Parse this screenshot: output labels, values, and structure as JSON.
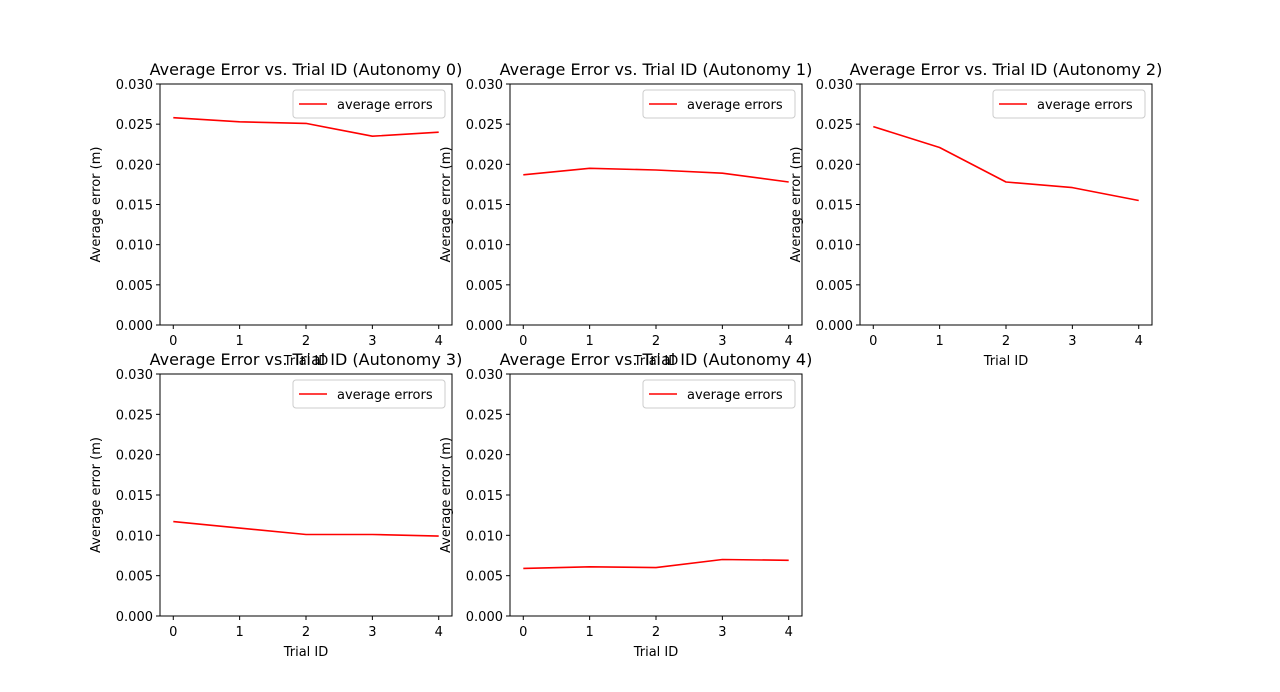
{
  "chart_data": [
    {
      "type": "line",
      "title": "Average Error vs. Trial ID (Autonomy 0)",
      "xlabel": "Trial ID",
      "ylabel": "Average error (m)",
      "x": [
        0,
        1,
        2,
        3,
        4
      ],
      "xlim": [
        -0.2,
        4.2
      ],
      "ylim": [
        0,
        0.03
      ],
      "xticks": [
        "0",
        "1",
        "2",
        "3",
        "4"
      ],
      "yticks": [
        "0.000",
        "0.005",
        "0.010",
        "0.015",
        "0.020",
        "0.025",
        "0.030"
      ],
      "series": [
        {
          "name": "average errors",
          "color": "#ff0000",
          "values": [
            0.0258,
            0.0253,
            0.0251,
            0.0235,
            0.024
          ]
        }
      ],
      "legend": "upper right",
      "grid": false
    },
    {
      "type": "line",
      "title": "Average Error vs. Trial ID (Autonomy 1)",
      "xlabel": "Trial ID",
      "ylabel": "Average error (m)",
      "x": [
        0,
        1,
        2,
        3,
        4
      ],
      "xlim": [
        -0.2,
        4.2
      ],
      "ylim": [
        0,
        0.03
      ],
      "xticks": [
        "0",
        "1",
        "2",
        "3",
        "4"
      ],
      "yticks": [
        "0.000",
        "0.005",
        "0.010",
        "0.015",
        "0.020",
        "0.025",
        "0.030"
      ],
      "series": [
        {
          "name": "average errors",
          "color": "#ff0000",
          "values": [
            0.0187,
            0.0195,
            0.0193,
            0.0189,
            0.0178
          ]
        }
      ],
      "legend": "upper right",
      "grid": false
    },
    {
      "type": "line",
      "title": "Average Error vs. Trial ID (Autonomy 2)",
      "xlabel": "Trial ID",
      "ylabel": "Average error (m)",
      "x": [
        0,
        1,
        2,
        3,
        4
      ],
      "xlim": [
        -0.2,
        4.2
      ],
      "ylim": [
        0,
        0.03
      ],
      "xticks": [
        "0",
        "1",
        "2",
        "3",
        "4"
      ],
      "yticks": [
        "0.000",
        "0.005",
        "0.010",
        "0.015",
        "0.020",
        "0.025",
        "0.030"
      ],
      "series": [
        {
          "name": "average errors",
          "color": "#ff0000",
          "values": [
            0.0247,
            0.0221,
            0.0178,
            0.0171,
            0.0155
          ]
        }
      ],
      "legend": "upper right",
      "grid": false
    },
    {
      "type": "line",
      "title": "Average Error vs. Trial ID (Autonomy 3)",
      "xlabel": "Trial ID",
      "ylabel": "Average error (m)",
      "x": [
        0,
        1,
        2,
        3,
        4
      ],
      "xlim": [
        -0.2,
        4.2
      ],
      "ylim": [
        0,
        0.03
      ],
      "xticks": [
        "0",
        "1",
        "2",
        "3",
        "4"
      ],
      "yticks": [
        "0.000",
        "0.005",
        "0.010",
        "0.015",
        "0.020",
        "0.025",
        "0.030"
      ],
      "series": [
        {
          "name": "average errors",
          "color": "#ff0000",
          "values": [
            0.0117,
            0.0109,
            0.0101,
            0.0101,
            0.0099
          ]
        }
      ],
      "legend": "upper right",
      "grid": false
    },
    {
      "type": "line",
      "title": "Average Error vs. Trial ID (Autonomy 4)",
      "xlabel": "Trial ID",
      "ylabel": "Average error (m)",
      "x": [
        0,
        1,
        2,
        3,
        4
      ],
      "xlim": [
        -0.2,
        4.2
      ],
      "ylim": [
        0,
        0.03
      ],
      "xticks": [
        "0",
        "1",
        "2",
        "3",
        "4"
      ],
      "yticks": [
        "0.000",
        "0.005",
        "0.010",
        "0.015",
        "0.020",
        "0.025",
        "0.030"
      ],
      "series": [
        {
          "name": "average errors",
          "color": "#ff0000",
          "values": [
            0.0059,
            0.0061,
            0.006,
            0.007,
            0.0069
          ]
        }
      ],
      "legend": "upper right",
      "grid": false
    }
  ]
}
